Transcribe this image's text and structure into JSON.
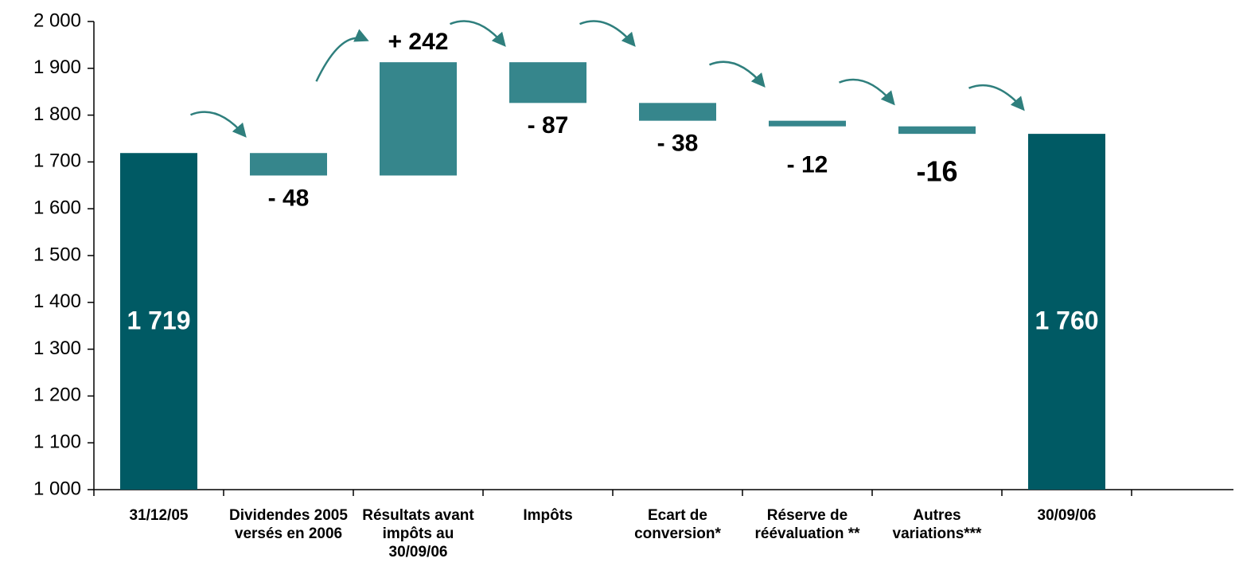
{
  "chart_data": {
    "type": "waterfall",
    "categories": [
      "31/12/05",
      "Dividendes 2005 versés en 2006",
      "Résultats avant impôts au 30/09/06",
      "Impôts",
      "Ecart de conversion*",
      "Réserve de réévaluation **",
      "Autres variations***",
      "30/09/06"
    ],
    "values": [
      1719,
      -48,
      242,
      -87,
      -38,
      -12,
      -16,
      1760
    ],
    "value_labels": [
      "1 719",
      "- 48",
      "+ 242",
      "- 87",
      "- 38",
      "- 12",
      "-16",
      "1 760"
    ],
    "is_total": [
      true,
      false,
      false,
      false,
      false,
      false,
      false,
      true
    ],
    "colors": [
      "#005a64",
      "#36868c",
      "#36868c",
      "#36868c",
      "#36868c",
      "#36868c",
      "#36868c",
      "#005a64"
    ],
    "ylim": [
      1000,
      2000
    ],
    "yticks": [
      {
        "value": 1000,
        "label": "1 000"
      },
      {
        "value": 1100,
        "label": "1 100"
      },
      {
        "value": 1200,
        "label": "1 200"
      },
      {
        "value": 1300,
        "label": "1 300"
      },
      {
        "value": 1400,
        "label": "1 400"
      },
      {
        "value": 1500,
        "label": "1 500"
      },
      {
        "value": 1600,
        "label": "1 600"
      },
      {
        "value": 1700,
        "label": "1 700"
      },
      {
        "value": 1800,
        "label": "1 800"
      },
      {
        "value": 1900,
        "label": "1 900"
      },
      {
        "value": 2000,
        "label": "2 000"
      }
    ]
  }
}
